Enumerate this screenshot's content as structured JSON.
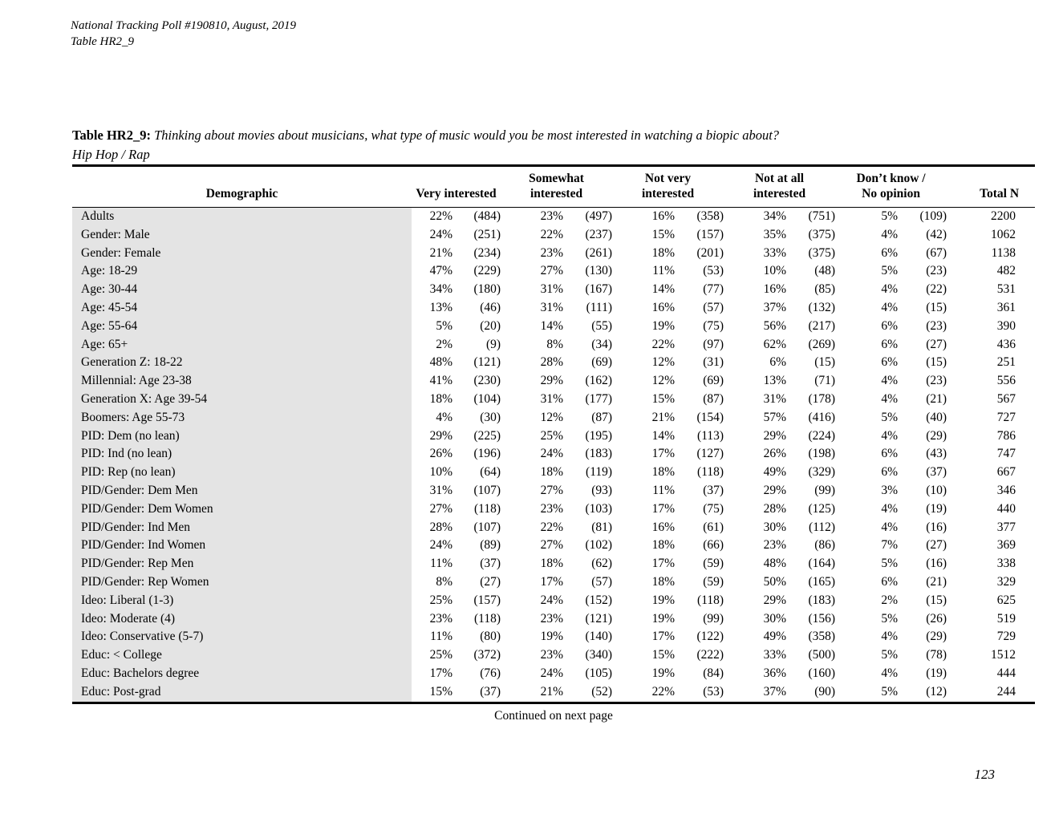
{
  "colors": {
    "demographic_column_bg": "#e4e4e4",
    "rule": "#000000",
    "text": "#000000"
  },
  "doc_header": {
    "line1": "National Tracking Poll #190810, August, 2019",
    "line2": "Table HR2_9"
  },
  "title": {
    "label": "Table HR2_9:",
    "question": "Thinking about movies about musicians, what type of music would you be most interested in watching a biopic about?",
    "subtitle": "Hip Hop / Rap"
  },
  "table": {
    "col_demographic": "Demographic",
    "columns": [
      {
        "line1": "",
        "line2": "Very interested"
      },
      {
        "line1": "Somewhat",
        "line2": "interested"
      },
      {
        "line1": "Not very",
        "line2": "interested"
      },
      {
        "line1": "Not at all",
        "line2": "interested"
      },
      {
        "line1": "Don’t know /",
        "line2": "No opinion"
      }
    ],
    "col_total": "Total N",
    "rows": [
      {
        "demographic": "Adults",
        "values": [
          "22%",
          "(484)",
          "23%",
          "(497)",
          "16%",
          "(358)",
          "34%",
          "(751)",
          "5%",
          "(109)"
        ],
        "total": "2200"
      },
      {
        "demographic": "Gender: Male",
        "values": [
          "24%",
          "(251)",
          "22%",
          "(237)",
          "15%",
          "(157)",
          "35%",
          "(375)",
          "4%",
          "(42)"
        ],
        "total": "1062"
      },
      {
        "demographic": "Gender: Female",
        "values": [
          "21%",
          "(234)",
          "23%",
          "(261)",
          "18%",
          "(201)",
          "33%",
          "(375)",
          "6%",
          "(67)"
        ],
        "total": "1138"
      },
      {
        "demographic": "Age: 18-29",
        "values": [
          "47%",
          "(229)",
          "27%",
          "(130)",
          "11%",
          "(53)",
          "10%",
          "(48)",
          "5%",
          "(23)"
        ],
        "total": "482"
      },
      {
        "demographic": "Age: 30-44",
        "values": [
          "34%",
          "(180)",
          "31%",
          "(167)",
          "14%",
          "(77)",
          "16%",
          "(85)",
          "4%",
          "(22)"
        ],
        "total": "531"
      },
      {
        "demographic": "Age: 45-54",
        "values": [
          "13%",
          "(46)",
          "31%",
          "(111)",
          "16%",
          "(57)",
          "37%",
          "(132)",
          "4%",
          "(15)"
        ],
        "total": "361"
      },
      {
        "demographic": "Age: 55-64",
        "values": [
          "5%",
          "(20)",
          "14%",
          "(55)",
          "19%",
          "(75)",
          "56%",
          "(217)",
          "6%",
          "(23)"
        ],
        "total": "390"
      },
      {
        "demographic": "Age: 65+",
        "values": [
          "2%",
          "(9)",
          "8%",
          "(34)",
          "22%",
          "(97)",
          "62%",
          "(269)",
          "6%",
          "(27)"
        ],
        "total": "436"
      },
      {
        "demographic": "Generation Z: 18-22",
        "values": [
          "48%",
          "(121)",
          "28%",
          "(69)",
          "12%",
          "(31)",
          "6%",
          "(15)",
          "6%",
          "(15)"
        ],
        "total": "251"
      },
      {
        "demographic": "Millennial: Age 23-38",
        "values": [
          "41%",
          "(230)",
          "29%",
          "(162)",
          "12%",
          "(69)",
          "13%",
          "(71)",
          "4%",
          "(23)"
        ],
        "total": "556"
      },
      {
        "demographic": "Generation X: Age 39-54",
        "values": [
          "18%",
          "(104)",
          "31%",
          "(177)",
          "15%",
          "(87)",
          "31%",
          "(178)",
          "4%",
          "(21)"
        ],
        "total": "567"
      },
      {
        "demographic": "Boomers: Age 55-73",
        "values": [
          "4%",
          "(30)",
          "12%",
          "(87)",
          "21%",
          "(154)",
          "57%",
          "(416)",
          "5%",
          "(40)"
        ],
        "total": "727"
      },
      {
        "demographic": "PID: Dem (no lean)",
        "values": [
          "29%",
          "(225)",
          "25%",
          "(195)",
          "14%",
          "(113)",
          "29%",
          "(224)",
          "4%",
          "(29)"
        ],
        "total": "786"
      },
      {
        "demographic": "PID: Ind (no lean)",
        "values": [
          "26%",
          "(196)",
          "24%",
          "(183)",
          "17%",
          "(127)",
          "26%",
          "(198)",
          "6%",
          "(43)"
        ],
        "total": "747"
      },
      {
        "demographic": "PID: Rep (no lean)",
        "values": [
          "10%",
          "(64)",
          "18%",
          "(119)",
          "18%",
          "(118)",
          "49%",
          "(329)",
          "6%",
          "(37)"
        ],
        "total": "667"
      },
      {
        "demographic": "PID/Gender: Dem Men",
        "values": [
          "31%",
          "(107)",
          "27%",
          "(93)",
          "11%",
          "(37)",
          "29%",
          "(99)",
          "3%",
          "(10)"
        ],
        "total": "346"
      },
      {
        "demographic": "PID/Gender: Dem Women",
        "values": [
          "27%",
          "(118)",
          "23%",
          "(103)",
          "17%",
          "(75)",
          "28%",
          "(125)",
          "4%",
          "(19)"
        ],
        "total": "440"
      },
      {
        "demographic": "PID/Gender: Ind Men",
        "values": [
          "28%",
          "(107)",
          "22%",
          "(81)",
          "16%",
          "(61)",
          "30%",
          "(112)",
          "4%",
          "(16)"
        ],
        "total": "377"
      },
      {
        "demographic": "PID/Gender: Ind Women",
        "values": [
          "24%",
          "(89)",
          "27%",
          "(102)",
          "18%",
          "(66)",
          "23%",
          "(86)",
          "7%",
          "(27)"
        ],
        "total": "369"
      },
      {
        "demographic": "PID/Gender: Rep Men",
        "values": [
          "11%",
          "(37)",
          "18%",
          "(62)",
          "17%",
          "(59)",
          "48%",
          "(164)",
          "5%",
          "(16)"
        ],
        "total": "338"
      },
      {
        "demographic": "PID/Gender: Rep Women",
        "values": [
          "8%",
          "(27)",
          "17%",
          "(57)",
          "18%",
          "(59)",
          "50%",
          "(165)",
          "6%",
          "(21)"
        ],
        "total": "329"
      },
      {
        "demographic": "Ideo: Liberal (1-3)",
        "values": [
          "25%",
          "(157)",
          "24%",
          "(152)",
          "19%",
          "(118)",
          "29%",
          "(183)",
          "2%",
          "(15)"
        ],
        "total": "625"
      },
      {
        "demographic": "Ideo: Moderate (4)",
        "values": [
          "23%",
          "(118)",
          "23%",
          "(121)",
          "19%",
          "(99)",
          "30%",
          "(156)",
          "5%",
          "(26)"
        ],
        "total": "519"
      },
      {
        "demographic": "Ideo: Conservative (5-7)",
        "values": [
          "11%",
          "(80)",
          "19%",
          "(140)",
          "17%",
          "(122)",
          "49%",
          "(358)",
          "4%",
          "(29)"
        ],
        "total": "729"
      },
      {
        "demographic": "Educ: < College",
        "values": [
          "25%",
          "(372)",
          "23%",
          "(340)",
          "15%",
          "(222)",
          "33%",
          "(500)",
          "5%",
          "(78)"
        ],
        "total": "1512"
      },
      {
        "demographic": "Educ: Bachelors degree",
        "values": [
          "17%",
          "(76)",
          "24%",
          "(105)",
          "19%",
          "(84)",
          "36%",
          "(160)",
          "4%",
          "(19)"
        ],
        "total": "444"
      },
      {
        "demographic": "Educ: Post-grad",
        "values": [
          "15%",
          "(37)",
          "21%",
          "(52)",
          "22%",
          "(53)",
          "37%",
          "(90)",
          "5%",
          "(12)"
        ],
        "total": "244"
      }
    ]
  },
  "footer": {
    "continued": "Continued on next page",
    "page_number": "123"
  }
}
